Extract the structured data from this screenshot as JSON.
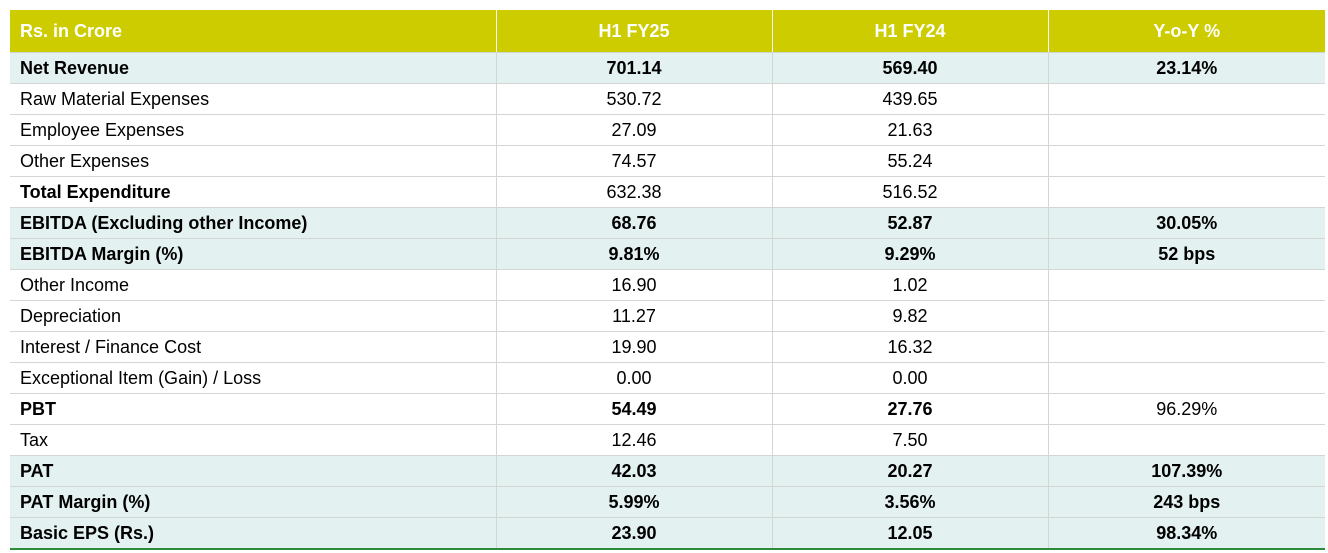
{
  "colors": {
    "header_bg": "#CCCC00",
    "header_text": "#FFFFFF",
    "highlight_row_bg": "#E4F1F1",
    "normal_row_bg": "#FFFFFF",
    "bottom_rule": "#2E8B3A"
  },
  "table": {
    "headers": [
      "Rs. in Crore",
      "H1 FY25",
      "H1 FY24",
      "Y-o-Y %"
    ],
    "rows": [
      {
        "label": "Net Revenue",
        "h1fy25": "701.14",
        "h1fy24": "569.40",
        "yoy": "23.14%",
        "style": "bold",
        "highlight": true
      },
      {
        "label": "Raw Material Expenses",
        "h1fy25": "530.72",
        "h1fy24": "439.65",
        "yoy": "",
        "style": "normal",
        "highlight": false
      },
      {
        "label": "Employee Expenses",
        "h1fy25": "27.09",
        "h1fy24": "21.63",
        "yoy": "",
        "style": "normal",
        "highlight": false
      },
      {
        "label": "Other Expenses",
        "h1fy25": "74.57",
        "h1fy24": "55.24",
        "yoy": "",
        "style": "normal",
        "highlight": false
      },
      {
        "label": "Total Expenditure",
        "h1fy25": "632.38",
        "h1fy24": "516.52",
        "yoy": "",
        "style": "label-bold",
        "highlight": false
      },
      {
        "label": "EBITDA (Excluding other Income)",
        "h1fy25": "68.76",
        "h1fy24": "52.87",
        "yoy": "30.05%",
        "style": "bold",
        "highlight": true
      },
      {
        "label": "EBITDA Margin (%)",
        "h1fy25": "9.81%",
        "h1fy24": "9.29%",
        "yoy": "52 bps",
        "style": "bold",
        "highlight": true
      },
      {
        "label": "Other Income",
        "h1fy25": "16.90",
        "h1fy24": "1.02",
        "yoy": "",
        "style": "normal",
        "highlight": false
      },
      {
        "label": "Depreciation",
        "h1fy25": "11.27",
        "h1fy24": "9.82",
        "yoy": "",
        "style": "normal",
        "highlight": false
      },
      {
        "label": "Interest / Finance Cost",
        "h1fy25": "19.90",
        "h1fy24": "16.32",
        "yoy": "",
        "style": "normal",
        "highlight": false
      },
      {
        "label": "Exceptional Item (Gain) / Loss",
        "h1fy25": "0.00",
        "h1fy24": "0.00",
        "yoy": "",
        "style": "normal",
        "highlight": false
      },
      {
        "label": "PBT",
        "h1fy25": "54.49",
        "h1fy24": "27.76",
        "yoy": "96.29%",
        "style": "bold-nums",
        "highlight": false
      },
      {
        "label": "Tax",
        "h1fy25": "12.46",
        "h1fy24": "7.50",
        "yoy": "",
        "style": "normal",
        "highlight": false
      },
      {
        "label": "PAT",
        "h1fy25": "42.03",
        "h1fy24": "20.27",
        "yoy": "107.39%",
        "style": "bold",
        "highlight": true
      },
      {
        "label": "PAT Margin (%)",
        "h1fy25": "5.99%",
        "h1fy24": "3.56%",
        "yoy": "243 bps",
        "style": "bold",
        "highlight": true
      },
      {
        "label": "Basic EPS (Rs.)",
        "h1fy25": "23.90",
        "h1fy24": "12.05",
        "yoy": "98.34%",
        "style": "bold",
        "highlight": true
      }
    ]
  }
}
